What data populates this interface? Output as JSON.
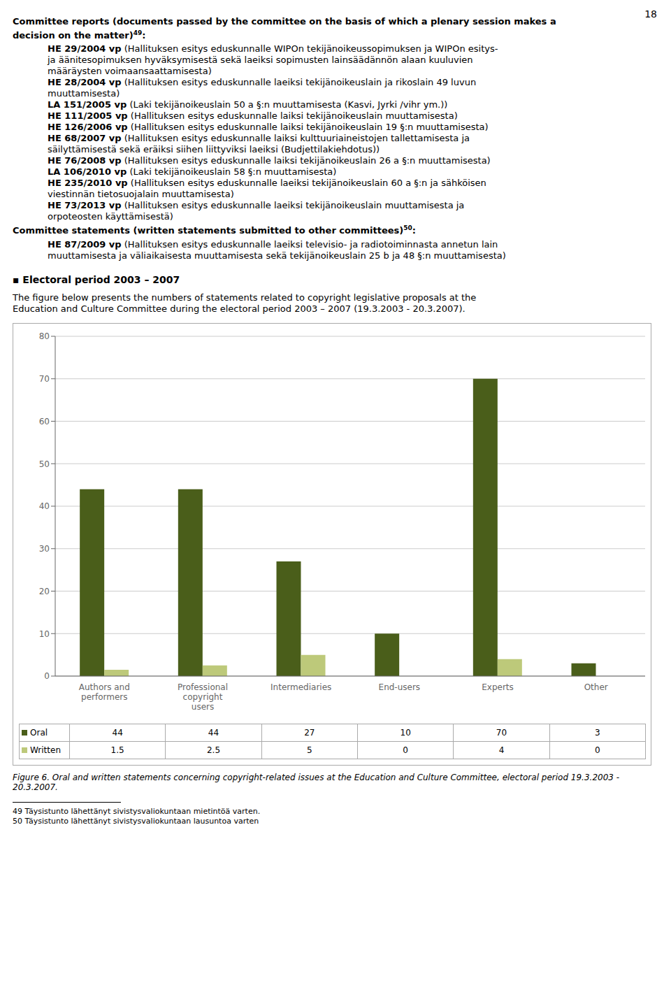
{
  "chart_data": {
    "type": "bar",
    "title": "Figure 6. Oral and written statements concerning copyright-related issues at the Education and Culture Committee, electoral period 19.3.2003 - 20.3.2007.",
    "annotations": [
      "18",
      "Committee reports (documents passed by the committee on the basis of which a plenary session makes a",
      "decision on the matter)49:",
      "HE 29/2004 vp (Hallituksen esitys eduskunnalle WIPOn tekijänoikeussopimuksen ja WIPOn esitys-",
      "ja äänitesopimuksen hyväksymisestä sekä laeiksi sopimusten lainsäädännön alaan kuuluvien",
      "määräysten voimaansaattamisesta)",
      "HE 28/2004 vp (Hallituksen esitys eduskunnalle laeiksi tekijänoikeuslain ja rikoslain 49 luvun",
      "muuttamisesta)",
      "LA 151/2005 vp (Laki tekijänoikeuslain 50 a §:n muuttamisesta (Kasvi, Jyrki /vihr ym.))",
      "HE 111/2005 vp (Hallituksen esitys eduskunnalle laiksi tekijänoikeuslain muuttamisesta)",
      "HE 126/2006 vp (Hallituksen esitys eduskunnalle laiksi tekijänoikeuslain 19 §:n muuttamisesta)",
      "HE 68/2007 vp (Hallituksen esitys eduskunnalle laiksi kulttuuriaineistojen tallettamisesta ja",
      "säilyttämisestä sekä eräiksi siihen liittyviksi laeiksi (Budjettilakiehdotus))",
      "HE 76/2008 vp (Hallituksen esitys eduskunnalle laiksi tekijänoikeuslain 26 a §:n muuttamisesta)",
      "LA 106/2010 vp (Laki tekijänoikeuslain 58 §:n muuttamisesta)",
      "HE 235/2010 vp (Hallituksen esitys eduskunnalle laeiksi tekijänoikeuslain 60 a §:n ja sähköisen",
      "viestinnän tietosuojalain muuttamisesta)",
      "HE 73/2013 vp (Hallituksen esitys eduskunnalle laeiksi tekijänoikeuslain muuttamisesta ja",
      "orpoteosten käyttämisestä)",
      "Committee statements (written statements submitted to other committees)50:",
      "HE 87/2009 vp (Hallituksen esitys eduskunnalle laeiksi televisio- ja radiotoiminnasta annetun lain",
      "muuttamisesta ja väliaikaisesta muuttamisesta sekä tekijänoikeuslain 25 b ja 48 §:n muuttamisesta)",
      "▪ Electoral period 2003 – 2007",
      "The figure below presents the numbers of statements related to copyright legislative proposals at the",
      "Education and Culture Committee during the electoral period 2003 – 2007 (19.3.2003 - 20.3.2007).",
      "49 Täysistunto lähettänyt sivistysvaliokuntaan mietintöä varten.",
      "50 Täysistunto lähettänyt sivistysvaliokuntaan lausuntoa varten"
    ],
    "categories": [
      "Authors and\nperformers",
      "Professional\ncopyright\nusers",
      "Intermediaries",
      "End-users",
      "Experts",
      "Other"
    ],
    "series": [
      {
        "name": "Oral",
        "color": "#4a5e1a",
        "values": [
          44,
          44,
          27,
          10,
          70,
          3
        ]
      },
      {
        "name": "Written",
        "color": "#bdc97a",
        "values": [
          1.5,
          2.5,
          5,
          0,
          4,
          0
        ]
      }
    ],
    "ylim": [
      0,
      80
    ],
    "yticks": [
      0,
      10,
      20,
      30,
      40,
      50,
      60,
      70,
      80
    ],
    "grid": true
  }
}
